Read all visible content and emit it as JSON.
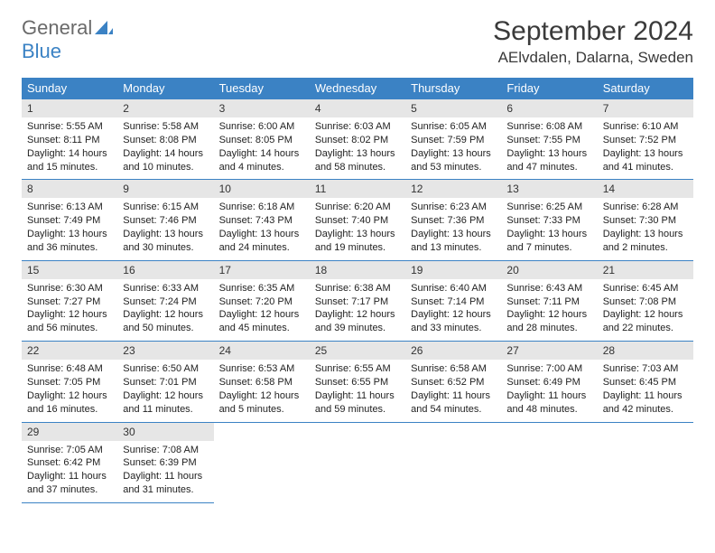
{
  "logo": {
    "word1": "General",
    "word2": "Blue"
  },
  "title": "September 2024",
  "location": "AElvdalen, Dalarna, Sweden",
  "colors": {
    "header_bg": "#3b82c4",
    "header_text": "#ffffff",
    "daynum_bg": "#e6e6e6",
    "border": "#3b82c4",
    "logo_gray": "#6a6a6a",
    "logo_blue": "#3b82c4"
  },
  "weekdays": [
    "Sunday",
    "Monday",
    "Tuesday",
    "Wednesday",
    "Thursday",
    "Friday",
    "Saturday"
  ],
  "days": [
    {
      "n": "1",
      "sr": "5:55 AM",
      "ss": "8:11 PM",
      "dl": "14 hours and 15 minutes."
    },
    {
      "n": "2",
      "sr": "5:58 AM",
      "ss": "8:08 PM",
      "dl": "14 hours and 10 minutes."
    },
    {
      "n": "3",
      "sr": "6:00 AM",
      "ss": "8:05 PM",
      "dl": "14 hours and 4 minutes."
    },
    {
      "n": "4",
      "sr": "6:03 AM",
      "ss": "8:02 PM",
      "dl": "13 hours and 58 minutes."
    },
    {
      "n": "5",
      "sr": "6:05 AM",
      "ss": "7:59 PM",
      "dl": "13 hours and 53 minutes."
    },
    {
      "n": "6",
      "sr": "6:08 AM",
      "ss": "7:55 PM",
      "dl": "13 hours and 47 minutes."
    },
    {
      "n": "7",
      "sr": "6:10 AM",
      "ss": "7:52 PM",
      "dl": "13 hours and 41 minutes."
    },
    {
      "n": "8",
      "sr": "6:13 AM",
      "ss": "7:49 PM",
      "dl": "13 hours and 36 minutes."
    },
    {
      "n": "9",
      "sr": "6:15 AM",
      "ss": "7:46 PM",
      "dl": "13 hours and 30 minutes."
    },
    {
      "n": "10",
      "sr": "6:18 AM",
      "ss": "7:43 PM",
      "dl": "13 hours and 24 minutes."
    },
    {
      "n": "11",
      "sr": "6:20 AM",
      "ss": "7:40 PM",
      "dl": "13 hours and 19 minutes."
    },
    {
      "n": "12",
      "sr": "6:23 AM",
      "ss": "7:36 PM",
      "dl": "13 hours and 13 minutes."
    },
    {
      "n": "13",
      "sr": "6:25 AM",
      "ss": "7:33 PM",
      "dl": "13 hours and 7 minutes."
    },
    {
      "n": "14",
      "sr": "6:28 AM",
      "ss": "7:30 PM",
      "dl": "13 hours and 2 minutes."
    },
    {
      "n": "15",
      "sr": "6:30 AM",
      "ss": "7:27 PM",
      "dl": "12 hours and 56 minutes."
    },
    {
      "n": "16",
      "sr": "6:33 AM",
      "ss": "7:24 PM",
      "dl": "12 hours and 50 minutes."
    },
    {
      "n": "17",
      "sr": "6:35 AM",
      "ss": "7:20 PM",
      "dl": "12 hours and 45 minutes."
    },
    {
      "n": "18",
      "sr": "6:38 AM",
      "ss": "7:17 PM",
      "dl": "12 hours and 39 minutes."
    },
    {
      "n": "19",
      "sr": "6:40 AM",
      "ss": "7:14 PM",
      "dl": "12 hours and 33 minutes."
    },
    {
      "n": "20",
      "sr": "6:43 AM",
      "ss": "7:11 PM",
      "dl": "12 hours and 28 minutes."
    },
    {
      "n": "21",
      "sr": "6:45 AM",
      "ss": "7:08 PM",
      "dl": "12 hours and 22 minutes."
    },
    {
      "n": "22",
      "sr": "6:48 AM",
      "ss": "7:05 PM",
      "dl": "12 hours and 16 minutes."
    },
    {
      "n": "23",
      "sr": "6:50 AM",
      "ss": "7:01 PM",
      "dl": "12 hours and 11 minutes."
    },
    {
      "n": "24",
      "sr": "6:53 AM",
      "ss": "6:58 PM",
      "dl": "12 hours and 5 minutes."
    },
    {
      "n": "25",
      "sr": "6:55 AM",
      "ss": "6:55 PM",
      "dl": "11 hours and 59 minutes."
    },
    {
      "n": "26",
      "sr": "6:58 AM",
      "ss": "6:52 PM",
      "dl": "11 hours and 54 minutes."
    },
    {
      "n": "27",
      "sr": "7:00 AM",
      "ss": "6:49 PM",
      "dl": "11 hours and 48 minutes."
    },
    {
      "n": "28",
      "sr": "7:03 AM",
      "ss": "6:45 PM",
      "dl": "11 hours and 42 minutes."
    },
    {
      "n": "29",
      "sr": "7:05 AM",
      "ss": "6:42 PM",
      "dl": "11 hours and 37 minutes."
    },
    {
      "n": "30",
      "sr": "7:08 AM",
      "ss": "6:39 PM",
      "dl": "11 hours and 31 minutes."
    }
  ],
  "labels": {
    "sunrise": "Sunrise:",
    "sunset": "Sunset:",
    "daylight": "Daylight:"
  }
}
